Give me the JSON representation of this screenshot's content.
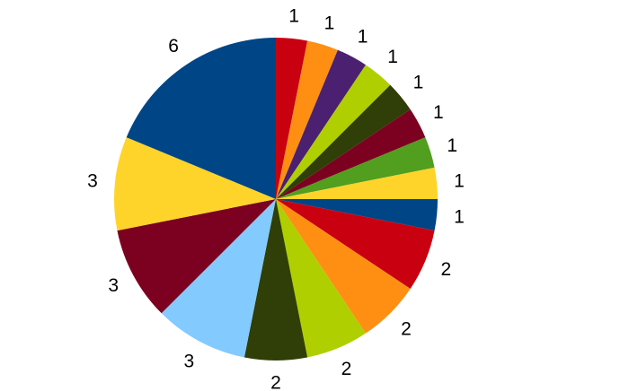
{
  "chart_data": {
    "type": "pie",
    "title": "",
    "legend": "none",
    "start_angle": "12 o'clock",
    "direction": "clockwise",
    "slices": [
      {
        "value": 1,
        "label": "1",
        "color": "#C9000F"
      },
      {
        "value": 1,
        "label": "1",
        "color": "#FF8F12"
      },
      {
        "value": 1,
        "label": "1",
        "color": "#4C2070"
      },
      {
        "value": 1,
        "label": "1",
        "color": "#AFCF00"
      },
      {
        "value": 1,
        "label": "1",
        "color": "#2F3F07"
      },
      {
        "value": 1,
        "label": "1",
        "color": "#7C0020"
      },
      {
        "value": 1,
        "label": "1",
        "color": "#529E1E"
      },
      {
        "value": 1,
        "label": "1",
        "color": "#FFD42A"
      },
      {
        "value": 1,
        "label": "1",
        "color": "#004586"
      },
      {
        "value": 2,
        "label": "2",
        "color": "#C9000F"
      },
      {
        "value": 2,
        "label": "2",
        "color": "#FF8F12"
      },
      {
        "value": 2,
        "label": "2",
        "color": "#AFCF00"
      },
      {
        "value": 2,
        "label": "2",
        "color": "#2F3F07"
      },
      {
        "value": 3,
        "label": "3",
        "color": "#83CAFF"
      },
      {
        "value": 3,
        "label": "3",
        "color": "#7C0020"
      },
      {
        "value": 3,
        "label": "3",
        "color": "#FFD42A"
      },
      {
        "value": 6,
        "label": "6",
        "color": "#004586"
      }
    ]
  }
}
